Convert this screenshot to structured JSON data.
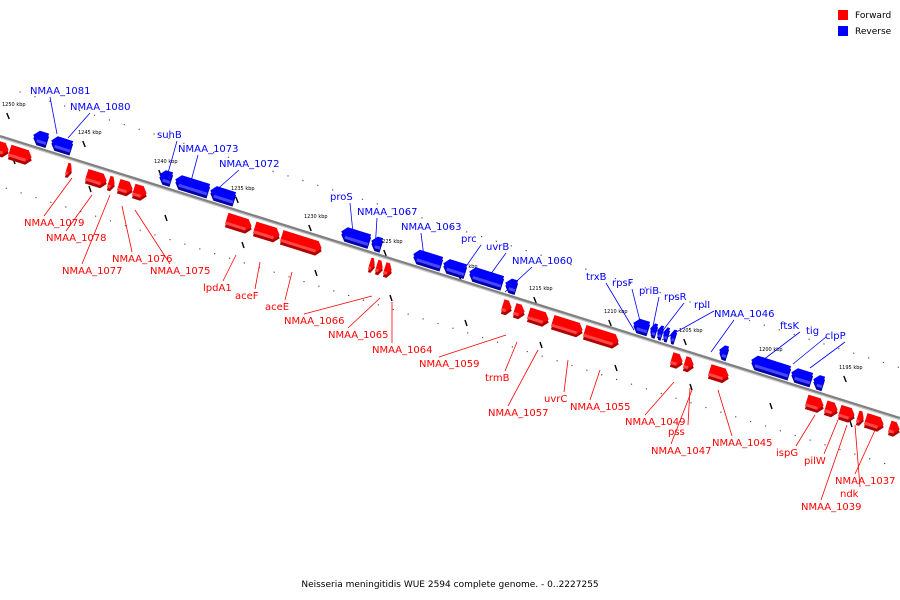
{
  "legend": {
    "forward_label": "Forward",
    "reverse_label": "Reverse",
    "forward_color": "#ff0000",
    "reverse_color": "#0000ff"
  },
  "caption": "Neisseria meningitidis WUE 2594 complete genome. - 0..2227255",
  "colors": {
    "forward": "#ff0000",
    "forward_dark": "#b00000",
    "forward_light": "#ff8080",
    "reverse": "#0000ff",
    "reverse_dark": "#0000a8",
    "reverse_light": "#8080ff",
    "backbone": "#808080"
  },
  "ticks": [
    "1250 kbp",
    "1245 kbp",
    "1240 kbp",
    "1235 kbp",
    "1230 kbp",
    "1225 kbp",
    "1220 kbp",
    "1215 kbp",
    "1210 kbp",
    "1205 kbp",
    "1200 kbp",
    "1195 kbp"
  ],
  "reverse_genes": [
    "NMAA_1081",
    "NMAA_1080",
    "suhB",
    "NMAA_1073",
    "NMAA_1072",
    "proS",
    "NMAA_1067",
    "NMAA_1063",
    "prc",
    "uvrB",
    "NMAA_1060",
    "trxB",
    "rpsF",
    "priB",
    "rpsR",
    "rplI",
    "NMAA_1046",
    "ftsK",
    "tig",
    "clpP"
  ],
  "forward_genes": [
    "NMAA_1079",
    "NMAA_1078",
    "NMAA_1077",
    "NMAA_1076",
    "NMAA_1075",
    "lpdA1",
    "aceF",
    "aceE",
    "NMAA_1066",
    "NMAA_1065",
    "NMAA_1064",
    "NMAA_1059",
    "trmB",
    "NMAA_1057",
    "uvrC",
    "NMAA_1055",
    "NMAA_1049",
    "pss",
    "NMAA_1047",
    "NMAA_1045",
    "ispG",
    "pilW",
    "ndk",
    "NMAA_1039",
    "NMAA_1037"
  ]
}
